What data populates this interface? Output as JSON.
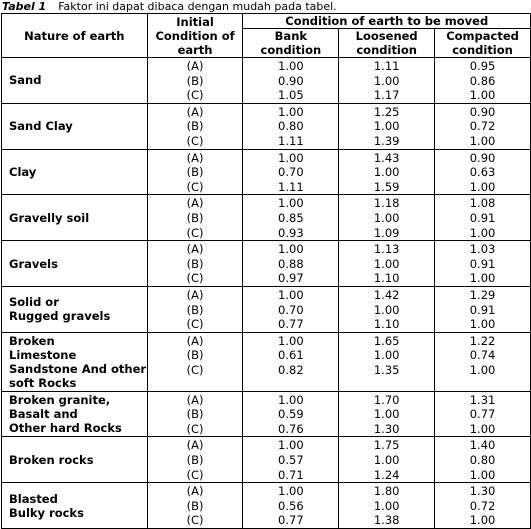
{
  "caption": {
    "label": "Tabel 1",
    "text": "Faktor ini dapat dibaca dengan mudah pada tabel."
  },
  "headers": {
    "nature": "Nature of earth",
    "initial": "Initial Condition of earth",
    "condition_group": "Condition of earth to be moved",
    "bank": "Bank condition",
    "loosened": "Loosened condition",
    "compacted": "Compacted condition"
  },
  "rows": [
    {
      "name": "Sand",
      "initial": "(A)\n(B)\n(C)",
      "bank": "1.00\n0.90\n1.05",
      "loosened": "1.11\n1.00\n1.17",
      "compacted": "0.95\n0.86\n1.00"
    },
    {
      "name": "Sand Clay",
      "initial": "(A)\n(B)\n(C)",
      "bank": "1.00\n0.80\n1.11",
      "loosened": "1.25\n1.00\n1.39",
      "compacted": "0.90\n0.72\n1.00"
    },
    {
      "name": "Clay",
      "initial": "(A)\n(B)\n(C)",
      "bank": "1.00\n0.70\n1.11",
      "loosened": "1.43\n1.00\n1.59",
      "compacted": "0.90\n0.63\n1.00"
    },
    {
      "name": "Gravelly soil",
      "initial": "(A)\n(B)\n(C)",
      "bank": "1.00\n0.85\n0.93",
      "loosened": "1.18\n1.00\n1.09",
      "compacted": "1.08\n0.91\n1.00"
    },
    {
      "name": "Gravels",
      "initial": "(A)\n(B)\n(C)",
      "bank": "1.00\n0.88\n0.97",
      "loosened": "1.13\n1.00\n1.10",
      "compacted": "1.03\n0.91\n1.00"
    },
    {
      "name": "Solid or\nRugged gravels",
      "initial": "(A)\n(B)\n(C)",
      "bank": "1.00\n0.70\n0.77",
      "loosened": "1.42\n1.00\n1.10",
      "compacted": "1.29\n0.91\n1.00"
    },
    {
      "name": "Broken\nLimestone\nSandstone And other\nsoft Rocks",
      "initial": "(A)\n(B)\n(C)",
      "bank": "1.00\n0.61\n0.82",
      "loosened": "1.65\n1.00\n1.35",
      "compacted": "1.22\n0.74\n1.00"
    },
    {
      "name": "Broken granite,\nBasalt and\nOther hard Rocks",
      "initial": "(A)\n(B)\n(C)",
      "bank": "1.00\n0.59\n0.76",
      "loosened": "1.70\n1.00\n1.30",
      "compacted": "1.31\n0.77\n1.00"
    },
    {
      "name": "Broken rocks",
      "initial": "(A)\n(B)\n(C)",
      "bank": "1.00\n0.57\n0.71",
      "loosened": "1.75\n1.00\n1.24",
      "compacted": "1.40\n0.80\n1.00"
    },
    {
      "name": "Blasted\nBulky rocks",
      "initial": "(A)\n(B)\n(C)",
      "bank": "1.00\n0.56\n0.77",
      "loosened": "1.80\n1.00\n1.38",
      "compacted": "1.30\n0.72\n1.00"
    }
  ]
}
